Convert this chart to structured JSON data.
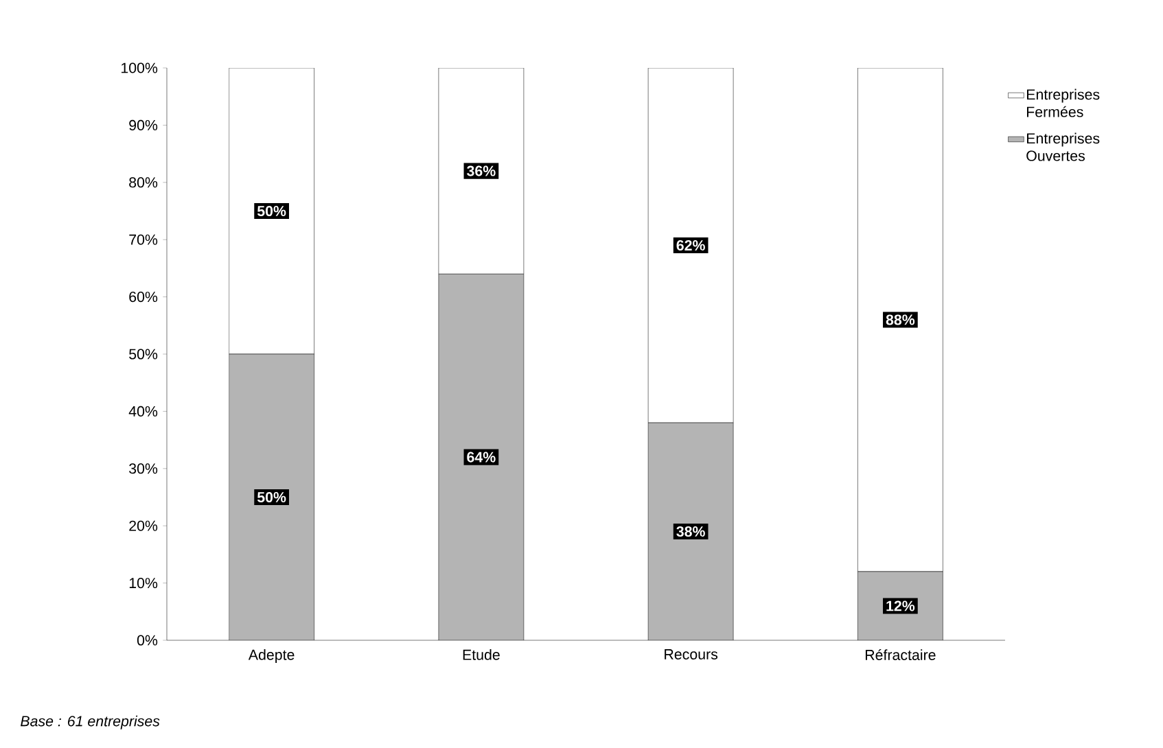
{
  "chart_data": {
    "type": "bar",
    "stacked": true,
    "categories": [
      "Adepte",
      "Etude",
      "Recours",
      "Réfractaire"
    ],
    "series": [
      {
        "name": "Entreprises Ouvertes",
        "color": "#b4b4b4",
        "values": [
          50,
          64,
          38,
          12
        ],
        "value_labels": [
          "50%",
          "64%",
          "38%",
          "12%"
        ]
      },
      {
        "name": "Entreprises Fermées",
        "color": "#ffffff",
        "values": [
          50,
          36,
          62,
          88
        ],
        "value_labels": [
          "50%",
          "36%",
          "62%",
          "88%"
        ]
      }
    ],
    "ylim": [
      0,
      100
    ],
    "yticks": [
      {
        "value": 0,
        "label": "0%"
      },
      {
        "value": 10,
        "label": "10%"
      },
      {
        "value": 20,
        "label": "20%"
      },
      {
        "value": 30,
        "label": "30%"
      },
      {
        "value": 40,
        "label": "40%"
      },
      {
        "value": 50,
        "label": "50%"
      },
      {
        "value": 60,
        "label": "60%"
      },
      {
        "value": 70,
        "label": "70%"
      },
      {
        "value": 80,
        "label": "80%"
      },
      {
        "value": 90,
        "label": "90%"
      },
      {
        "value": 100,
        "label": "100%"
      }
    ],
    "grid": false,
    "legend": "top right",
    "annotations": [
      "Base : 61 entreprises"
    ]
  }
}
